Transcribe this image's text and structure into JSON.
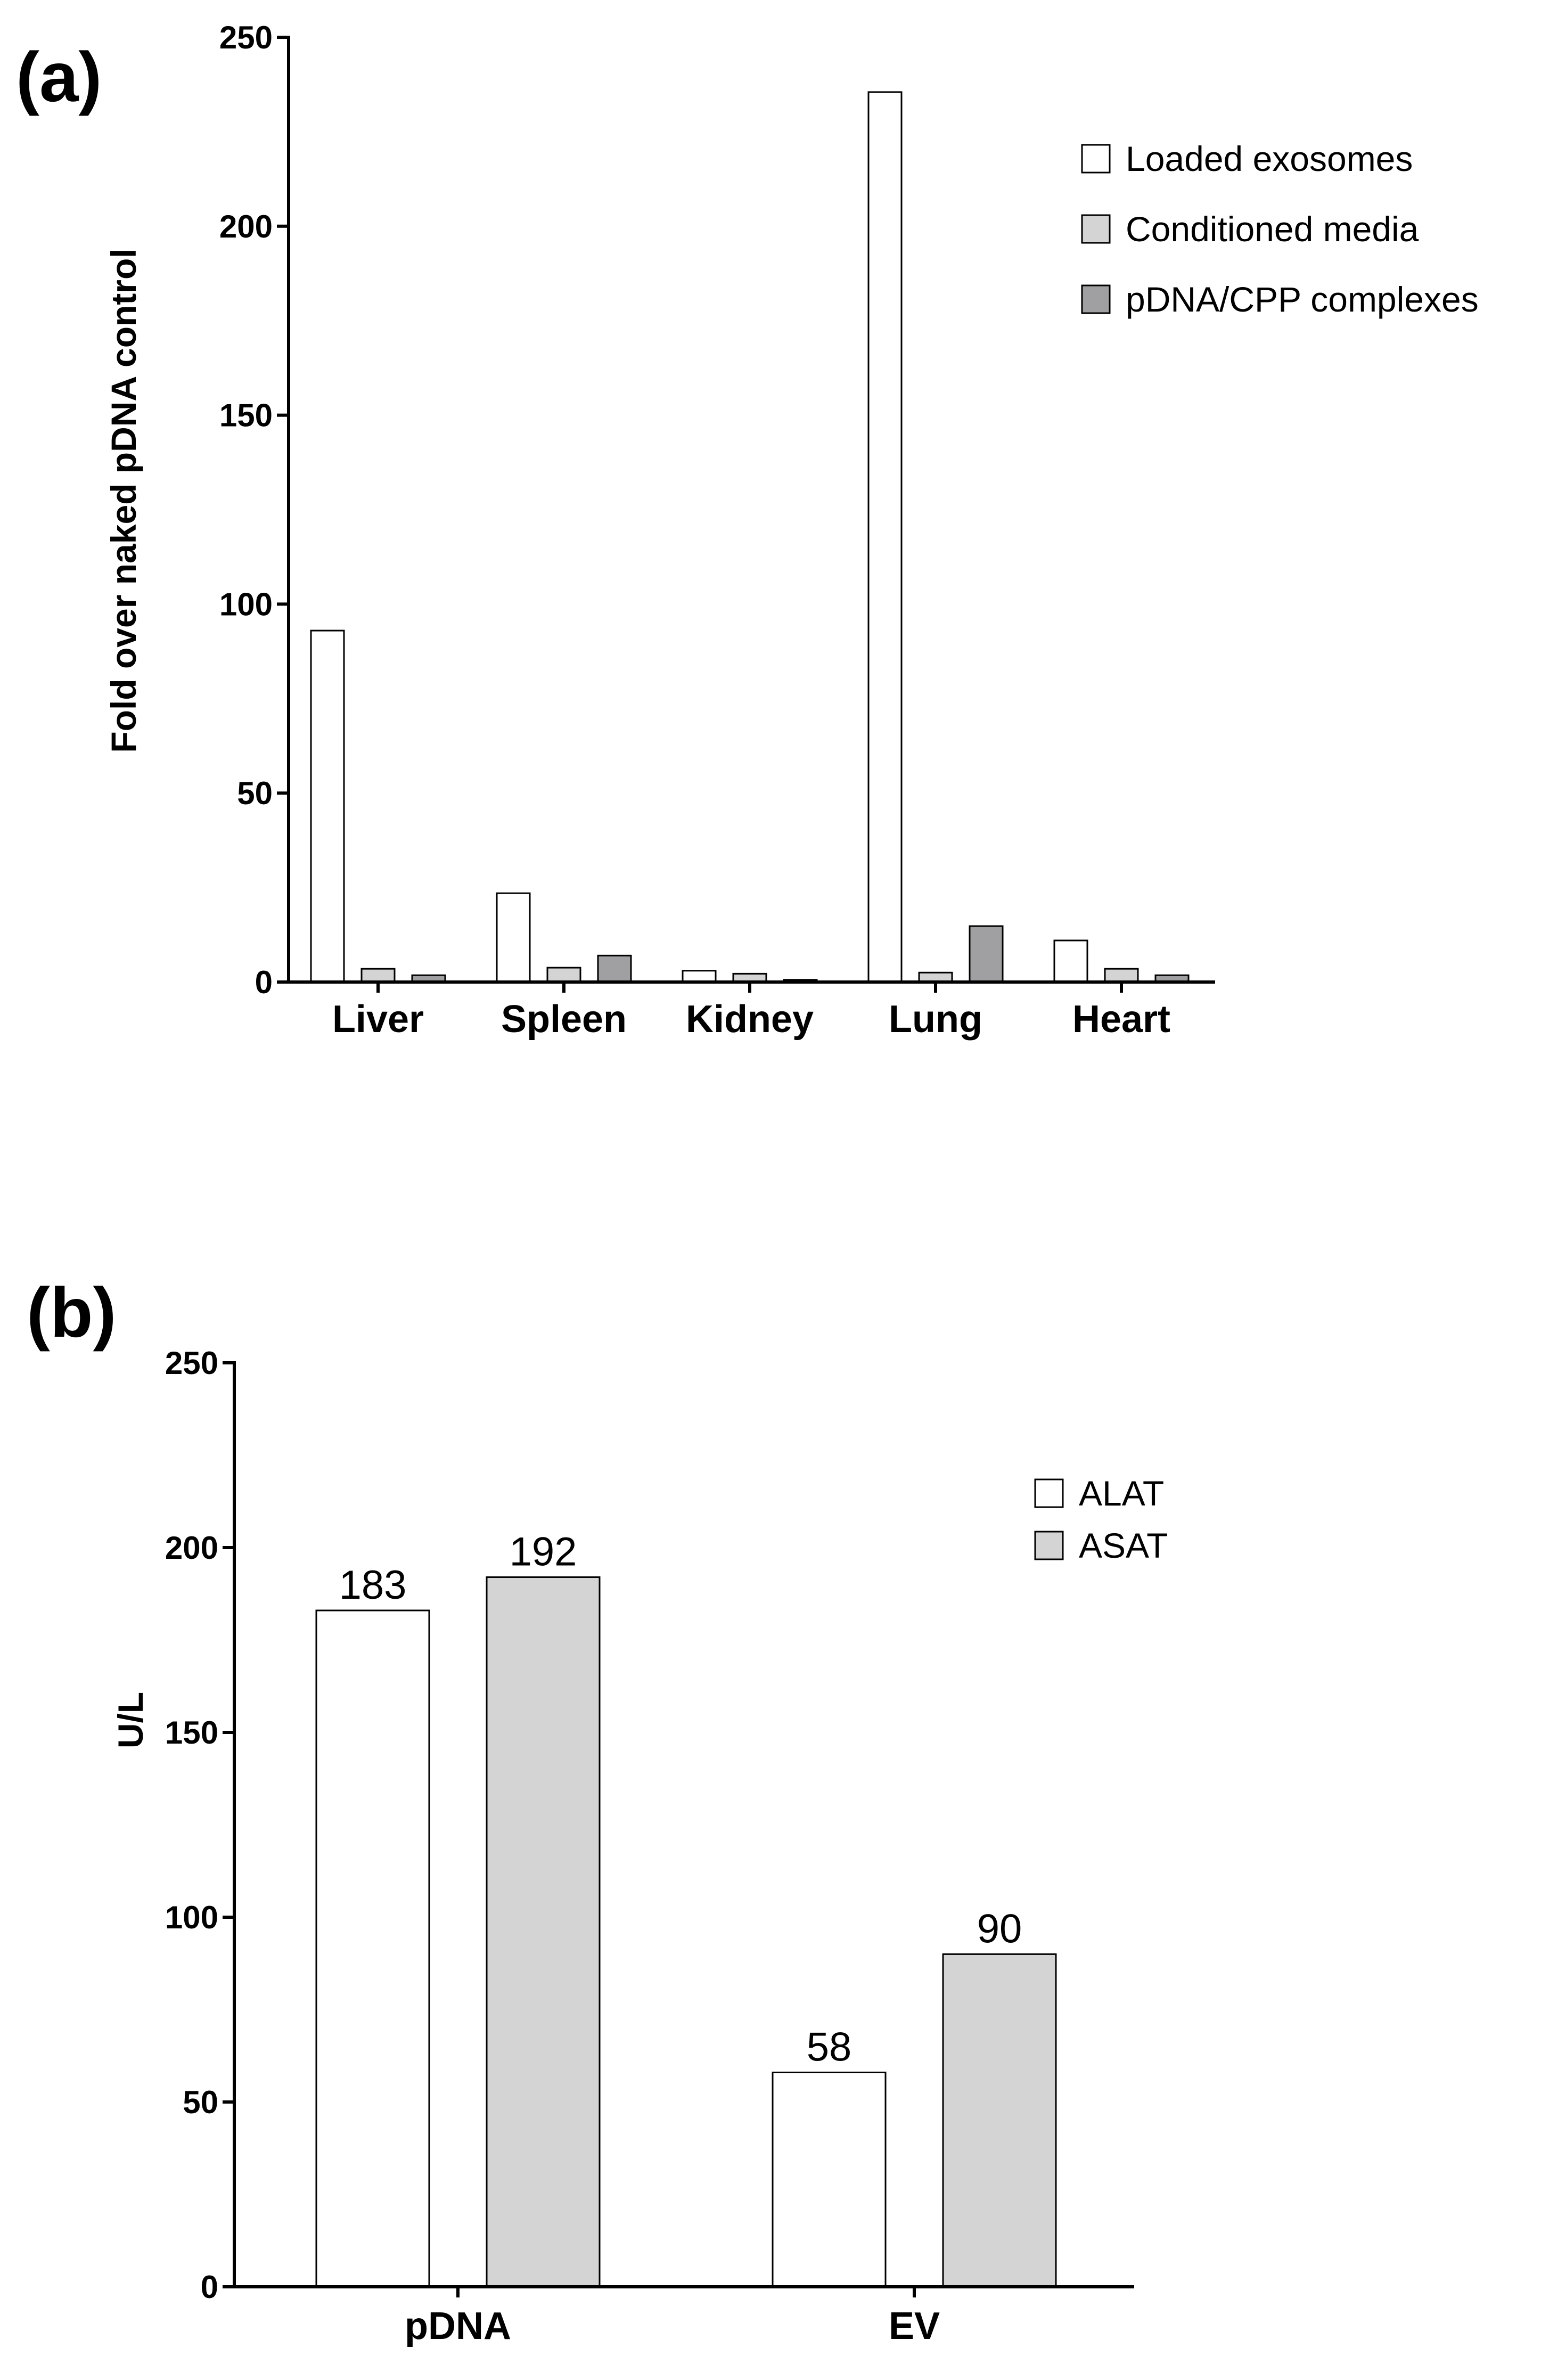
{
  "chart_data": [
    {
      "type": "bar",
      "panel_label": "(a)",
      "title": "",
      "xlabel": "",
      "ylabel": "Fold over naked pDNA control",
      "ylim": [
        0,
        250
      ],
      "yticks": [
        0,
        50,
        100,
        150,
        200,
        250
      ],
      "grid": false,
      "legend_position": "top-right",
      "categories": [
        "Liver",
        "Spleen",
        "Kidney",
        "Lung",
        "Heart"
      ],
      "series": [
        {
          "name": "Loaded exosomes",
          "color": "#ffffff",
          "values": [
            93,
            23.5,
            3,
            235.5,
            11
          ]
        },
        {
          "name": "Conditioned media",
          "color": "#d4d4d4",
          "values": [
            3.5,
            3.8,
            2.2,
            2.5,
            3.5
          ]
        },
        {
          "name": "pDNA/CPP complexes",
          "color": "#a0a0a2",
          "values": [
            1.8,
            7,
            0.6,
            14.8,
            1.8
          ]
        }
      ]
    },
    {
      "type": "bar",
      "panel_label": "(b)",
      "title": "",
      "xlabel": "",
      "ylabel": "U/L",
      "ylim": [
        0,
        250
      ],
      "yticks": [
        0,
        50,
        100,
        150,
        200,
        250
      ],
      "grid": false,
      "legend_position": "top-right",
      "show_value_labels": true,
      "categories": [
        "pDNA",
        "EV"
      ],
      "series": [
        {
          "name": "ALAT",
          "color": "#ffffff",
          "values": [
            183,
            58
          ]
        },
        {
          "name": "ASAT",
          "color": "#d4d4d4",
          "values": [
            192,
            90
          ]
        }
      ]
    }
  ]
}
